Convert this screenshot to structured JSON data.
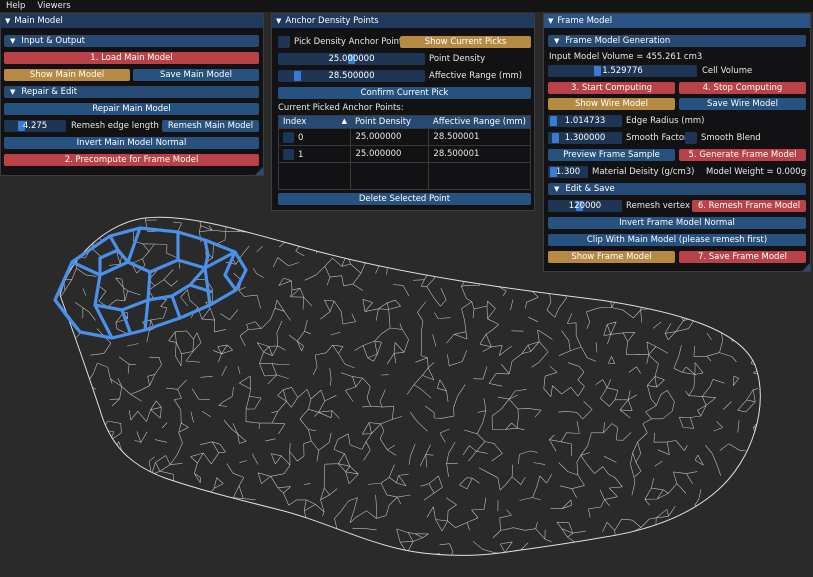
{
  "menubar": {
    "items": [
      "Help",
      "Viewers"
    ]
  },
  "main_model": {
    "title": "Main Model",
    "input_output": {
      "header": "Input & Output",
      "load_label": "1. Load Main Model",
      "show_label": "Show Main Model",
      "save_label": "Save Main Model"
    },
    "repair_edit": {
      "header": "Repair & Edit",
      "repair_label": "Repair Main Model",
      "remesh_value": "4.275",
      "remesh_label": "Remesh edge length (mm)",
      "remesh_button": "Remesh Main Model",
      "invert_label": "Invert Main Model Normal",
      "precompute_label": "2. Precompute for Frame Model"
    }
  },
  "anchor": {
    "title": "Anchor Density Points",
    "pick_label": "Pick Density Anchor Points",
    "show_picks_label": "Show Current Picks",
    "density_value": "25.000000",
    "density_label": "Point Density",
    "range_value": "28.500000",
    "range_label": "Affective Range (mm)",
    "confirm_label": "Confirm Current Pick",
    "list_label": "Current Picked Anchor Points:",
    "columns": [
      "Index",
      "Point Density",
      "Affective Range (mm)"
    ],
    "sort_indicator": "▲",
    "rows": [
      {
        "index": "0",
        "density": "25.000000",
        "range": "28.500001"
      },
      {
        "index": "1",
        "density": "25.000000",
        "range": "28.500001"
      }
    ],
    "delete_label": "Delete Selected Point"
  },
  "frame_model": {
    "title": "Frame Model",
    "generation": {
      "header": "Frame Model Generation",
      "volume_text": "Input Model Volume = 455.261 cm3",
      "cell_value": "1.529776",
      "cell_label": "Cell Volume",
      "start_label": "3. Start Computing",
      "stop_label": "4. Stop Computing",
      "show_wire_label": "Show Wire Model",
      "save_wire_label": "Save Wire Model",
      "edge_value": "1.014733",
      "edge_label": "Edge Radius (mm)",
      "smooth_value": "1.300000",
      "smooth_label": "Smooth Factor",
      "smooth_blend_label": "Smooth Blend",
      "preview_label": "Preview Frame Sample",
      "generate_label": "5. Generate Frame Model",
      "density_value": "1.300",
      "density_label": "Material Deisity (g/cm3)",
      "weight_text": "Model Weight = 0.000g"
    },
    "edit_save": {
      "header": "Edit & Save",
      "vertex_value": "120000",
      "vertex_label": "Remesh vertex #",
      "remesh_label": "6. Remesh Frame Model",
      "invert_label": "Invert Frame Model Normal",
      "clip_label": "Clip With Main Model (please remesh first)",
      "show_label": "Show Frame Model",
      "save_label": "7. Save Frame Model"
    }
  },
  "colors": {
    "background": "#2a2a2a",
    "wire": "#d8d8d8",
    "highlight": "#4a90e8",
    "red_button": "#b94148",
    "gold_button": "#b78a43",
    "blue_button": "#27517e"
  },
  "slider_values": {
    "cell_volume_fraction": 0.5,
    "edge_radius_fraction": 0.08,
    "smooth_factor_fraction": 0.1,
    "density_fraction": 0.1,
    "vertex_fraction": 0.4,
    "point_density_fraction": 0.5,
    "range_fraction": 0.12,
    "remesh_length_fraction": 0.3
  }
}
